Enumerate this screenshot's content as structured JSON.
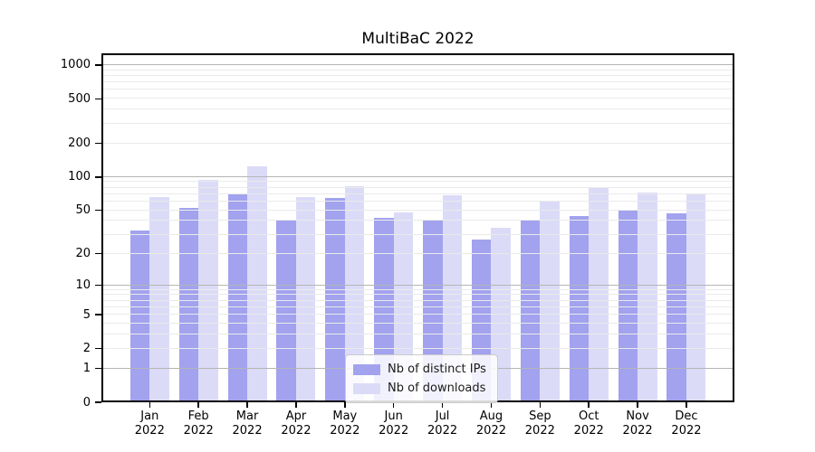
{
  "title": "MultiBaC 2022",
  "chart_data": {
    "type": "bar",
    "title": "MultiBaC 2022",
    "xlabel": "",
    "ylabel": "",
    "y_scale": "symlog-log1p",
    "categories": [
      "Jan 2022",
      "Feb 2022",
      "Mar 2022",
      "Apr 2022",
      "May 2022",
      "Jun 2022",
      "Jul 2022",
      "Aug 2022",
      "Sep 2022",
      "Oct 2022",
      "Nov 2022",
      "Dec 2022"
    ],
    "series": [
      {
        "name": "Nb of distinct IPs",
        "color": "#a2a2ef",
        "values": [
          33,
          53,
          70,
          40,
          65,
          43,
          40,
          27,
          41,
          44,
          50,
          47
        ]
      },
      {
        "name": "Nb of downloads",
        "color": "#dbdbf8",
        "values": [
          66,
          94,
          125,
          66,
          83,
          48,
          68,
          35,
          61,
          81,
          72,
          70
        ]
      }
    ],
    "y_ticks": [
      1000,
      500,
      200,
      100,
      50,
      20,
      10,
      5,
      2,
      1,
      0
    ],
    "minor_gridlines": [
      2,
      3,
      4,
      5,
      6,
      7,
      8,
      9,
      20,
      30,
      40,
      50,
      60,
      70,
      80,
      90,
      200,
      300,
      400,
      500,
      600,
      700,
      800,
      900
    ],
    "major_gridlines": [
      1,
      10,
      100,
      1000
    ],
    "ylim": [
      0,
      1270
    ],
    "grid": {
      "minor_color": "#eaeaea",
      "major_color": "#b5b5b5"
    },
    "legend_position": "lower center"
  },
  "legend": {
    "items": [
      {
        "label": "Nb of distinct IPs",
        "color": "#a2a2ef"
      },
      {
        "label": "Nb of downloads",
        "color": "#dbdbf8"
      }
    ]
  }
}
